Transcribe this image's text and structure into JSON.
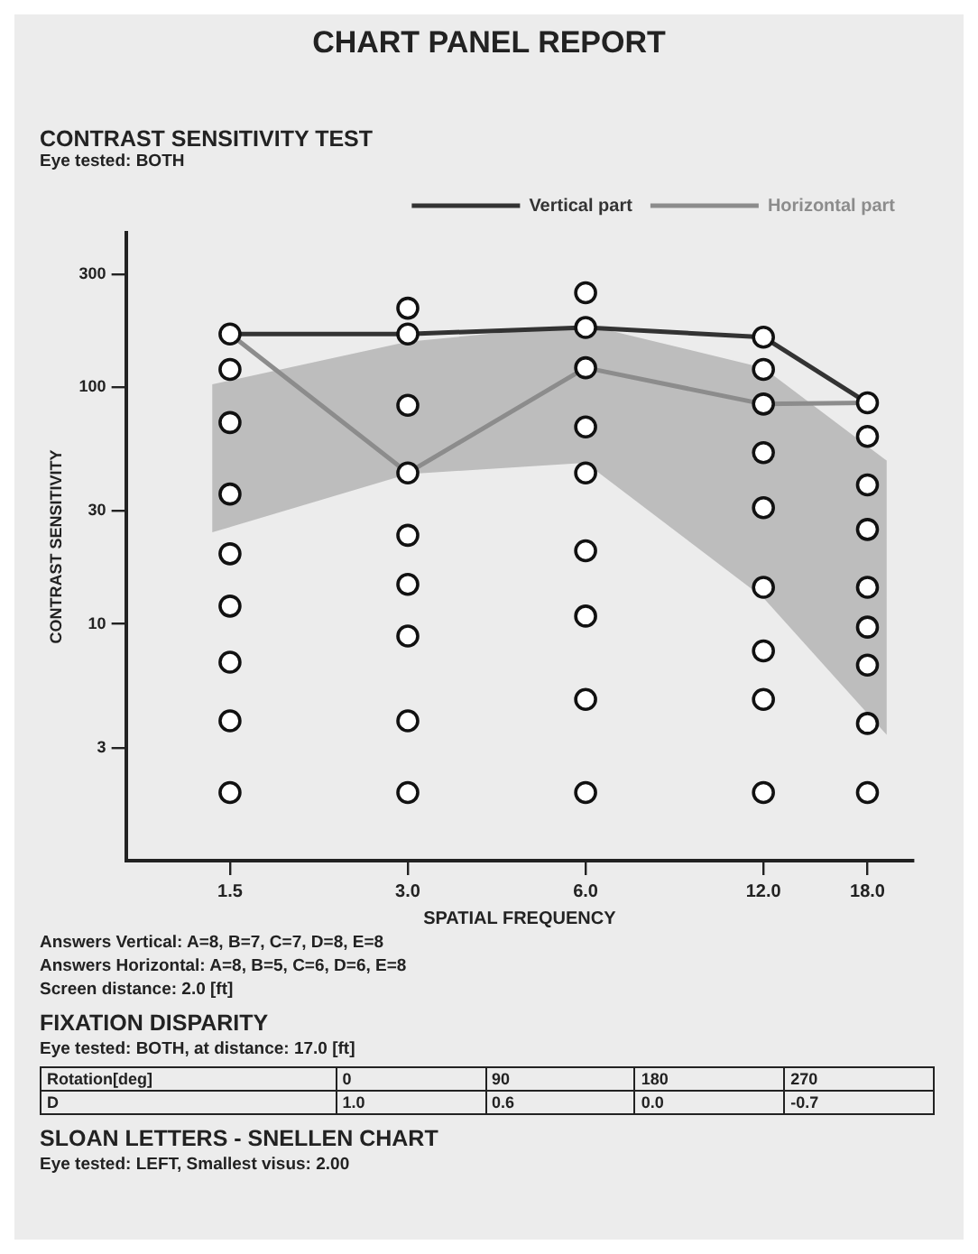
{
  "chart_data": {
    "type": "line",
    "title": "CHART PANEL REPORT",
    "subtitle": "CONTRAST SENSITIVITY TEST",
    "xlabel": "SPATIAL FREQUENCY",
    "ylabel": "CONTRAST SENSITIVITY",
    "x": [
      1.5,
      3.0,
      6.0,
      12.0,
      18.0
    ],
    "series": [
      {
        "type": "area",
        "color": "#bdbdbd",
        "x": [
          1.4,
          3.0,
          6.0,
          12.0,
          19.4
        ],
        "values": [
          null,
          null,
          null,
          null,
          null
        ],
        "lower": [
          24.4,
          43,
          48,
          12.9,
          3.4
        ],
        "upper": [
          103,
          156,
          184,
          121,
          49
        ]
      },
      {
        "name": "Vertical part",
        "type": "line",
        "color": "#333333",
        "marker": "none",
        "values": [
          168,
          168,
          179,
          163,
          86
        ]
      },
      {
        "name": "Horizontal part",
        "type": "line",
        "color": "#8c8c8c",
        "marker": "none",
        "values": [
          168,
          43.5,
          121,
          85,
          86
        ]
      },
      {
        "type": "scatter",
        "color": "#111111",
        "marker": "circle",
        "x": [
          1.5,
          1.5,
          1.5,
          1.5,
          1.5,
          1.5,
          1.5,
          1.5,
          1.5,
          3.0,
          3.0,
          3.0,
          3.0,
          3.0,
          3.0,
          3.0,
          3.0,
          3.0,
          6.0,
          6.0,
          6.0,
          6.0,
          6.0,
          6.0,
          6.0,
          6.0,
          6.0,
          12.0,
          12.0,
          12.0,
          12.0,
          12.0,
          12.0,
          12.0,
          12.0,
          12.0,
          18.0,
          18.0,
          18.0,
          18.0,
          18.0,
          18.0,
          18.0,
          18.0,
          18.0
        ],
        "values": [
          168,
          119,
          71,
          35.4,
          19.8,
          11.9,
          6.9,
          3.9,
          1.94,
          216,
          168,
          84,
          43.5,
          23.7,
          14.7,
          8.9,
          3.9,
          1.94,
          251,
          179,
          121,
          68,
          43.5,
          20.4,
          10.8,
          4.8,
          1.94,
          163,
          119,
          85,
          53,
          31,
          14.3,
          7.7,
          4.8,
          1.94,
          86,
          62,
          38.7,
          25.1,
          14.3,
          9.7,
          6.7,
          3.8,
          1.94
        ]
      }
    ],
    "log": "xy",
    "xlim": [
      1,
      21.5
    ],
    "ylim": [
      1,
      450
    ],
    "xticks": [
      1.5,
      {
        "value": 3.0,
        "label": "3.0"
      },
      {
        "value": 6.0,
        "label": "6.0"
      },
      {
        "value": 12.0,
        "label": "12.0"
      },
      {
        "value": 18.0,
        "label": "18.0"
      }
    ],
    "yticks": [
      3,
      10,
      30,
      100,
      300
    ],
    "legend": "top right",
    "annotations": [
      "Eye tested: BOTH",
      "Answers Vertical:  A=8, B=7, C=7, D=8, E=8",
      "Answers Horizontal:  A=8, B=5, C=6, D=6, E=8",
      "Screen distance:  2.0 [ft]",
      "FIXATION DISPARITY",
      "Eye tested: BOTH, at distance: 17.0 [ft]",
      "Rotation[deg]",
      "0",
      "90",
      "180",
      "270",
      "D",
      "1.0",
      "0.6",
      "0.0",
      "-0.7",
      "SLOAN LETTERS - SNELLEN CHART",
      "Eye tested: LEFT, Smallest visus: 2.00"
    ]
  }
}
